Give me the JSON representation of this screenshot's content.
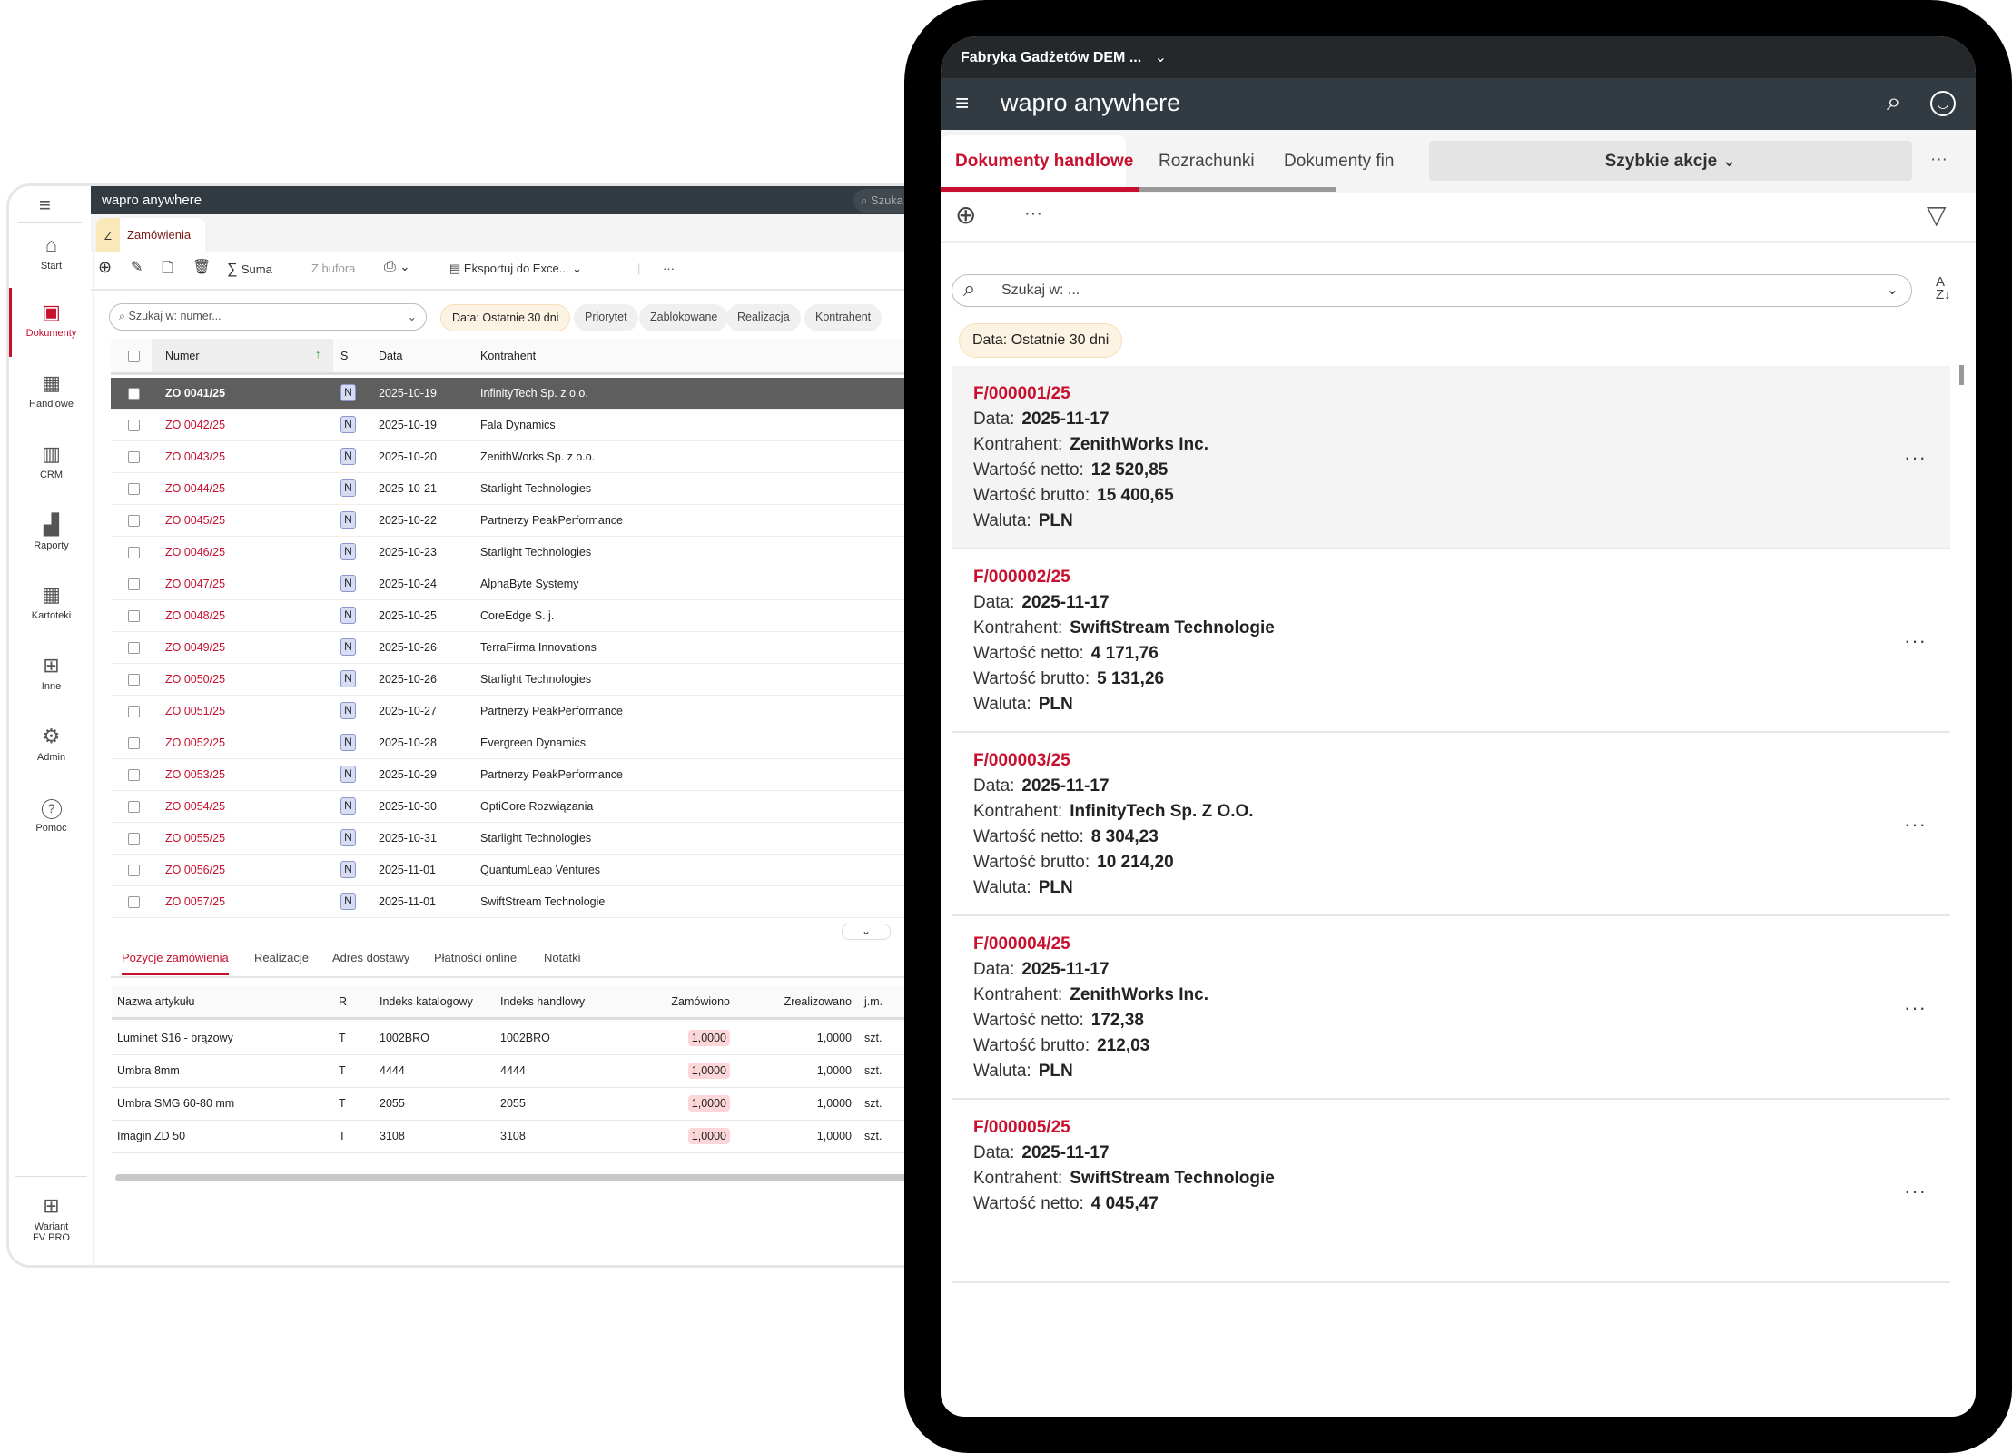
{
  "desktop": {
    "brand": "wapro anywhere",
    "search_placeholder": "Szuka",
    "sidebar": [
      {
        "label": "Start",
        "icon": "home-icon"
      },
      {
        "label": "Dokumenty",
        "icon": "document-icon",
        "active": true
      },
      {
        "label": "Handlowe",
        "icon": "handlowe-icon"
      },
      {
        "label": "CRM",
        "icon": "crm-icon"
      },
      {
        "label": "Raporty",
        "icon": "chart-icon"
      },
      {
        "label": "Kartoteki",
        "icon": "table-icon"
      },
      {
        "label": "Inne",
        "icon": "grid-icon"
      },
      {
        "label": "Admin",
        "icon": "gear-icon"
      },
      {
        "label": "Pomoc",
        "icon": "help-icon"
      }
    ],
    "variant_label_1": "Wariant",
    "variant_label_2": "FV PRO",
    "tab": {
      "badge": "Z",
      "label": "Zamówienia"
    },
    "toolbar": {
      "suma": "Suma",
      "z_bufora": "Z bufora",
      "export": "Eksportuj do Exce..."
    },
    "filter": {
      "search_placeholder": "Szukaj w: numer...",
      "chips": [
        "Data: Ostatnie 30 dni",
        "Priorytet",
        "Zablokowane",
        "Realizacja",
        "Kontrahent"
      ]
    },
    "grid": {
      "headers": {
        "numer": "Numer",
        "s": "S",
        "data": "Data",
        "kontrahent": "Kontrahent"
      },
      "rows": [
        [
          "ZO 0041/25",
          "N",
          "2025-10-19",
          "InfinityTech Sp. z o.o."
        ],
        [
          "ZO 0042/25",
          "N",
          "2025-10-19",
          "Fala Dynamics"
        ],
        [
          "ZO 0043/25",
          "N",
          "2025-10-20",
          "ZenithWorks Sp. z o.o."
        ],
        [
          "ZO 0044/25",
          "N",
          "2025-10-21",
          "Starlight Technologies"
        ],
        [
          "ZO 0045/25",
          "N",
          "2025-10-22",
          "Partnerzy PeakPerformance"
        ],
        [
          "ZO 0046/25",
          "N",
          "2025-10-23",
          "Starlight Technologies"
        ],
        [
          "ZO 0047/25",
          "N",
          "2025-10-24",
          "AlphaByte Systemy"
        ],
        [
          "ZO 0048/25",
          "N",
          "2025-10-25",
          "CoreEdge S. j."
        ],
        [
          "ZO 0049/25",
          "N",
          "2025-10-26",
          "TerraFirma Innovations"
        ],
        [
          "ZO 0050/25",
          "N",
          "2025-10-26",
          "Starlight Technologies"
        ],
        [
          "ZO 0051/25",
          "N",
          "2025-10-27",
          "Partnerzy PeakPerformance"
        ],
        [
          "ZO 0052/25",
          "N",
          "2025-10-28",
          "Evergreen Dynamics"
        ],
        [
          "ZO 0053/25",
          "N",
          "2025-10-29",
          "Partnerzy PeakPerformance"
        ],
        [
          "ZO 0054/25",
          "N",
          "2025-10-30",
          "OptiCore Rozwiązania"
        ],
        [
          "ZO 0055/25",
          "N",
          "2025-10-31",
          "Starlight Technologies"
        ],
        [
          "ZO 0056/25",
          "N",
          "2025-11-01",
          "QuantumLeap Ventures"
        ],
        [
          "ZO 0057/25",
          "N",
          "2025-11-01",
          "SwiftStream Technologie"
        ]
      ]
    },
    "bottom_tabs": [
      "Pozycje zamówienia",
      "Realizacje",
      "Adres dostawy",
      "Płatności online",
      "Notatki"
    ],
    "detail": {
      "headers": [
        "Nazwa artykułu",
        "R",
        "Indeks katalogowy",
        "Indeks handlowy",
        "Zamówiono",
        "Zrealizowano",
        "j.m."
      ],
      "rows": [
        [
          "Luminet S16 - brązowy",
          "T",
          "1002BRO",
          "1002BRO",
          "1,0000",
          "1,0000",
          "szt."
        ],
        [
          "Umbra 8mm",
          "T",
          "4444",
          "4444",
          "1,0000",
          "1,0000",
          "szt."
        ],
        [
          "Umbra SMG 60-80 mm",
          "T",
          "2055",
          "2055",
          "1,0000",
          "1,0000",
          "szt."
        ],
        [
          "Imagin ZD 50",
          "T",
          "3108",
          "3108",
          "1,0000",
          "1,0000",
          "szt."
        ]
      ]
    }
  },
  "tablet": {
    "company": "Fabryka Gadżetów DEM ...",
    "brand": "wapro anywhere",
    "tabs": [
      "Dokumenty handlowe",
      "Rozrachunki",
      "Dokumenty fin"
    ],
    "quick_actions": "Szybkie akcje",
    "search_placeholder": "Szukaj w: ...",
    "chip": "Data: Ostatnie 30 dni",
    "labels": {
      "data": "Data:",
      "kontrahent": "Kontrahent:",
      "netto": "Wartość netto:",
      "brutto": "Wartość brutto:",
      "waluta": "Waluta:"
    },
    "cards": [
      {
        "numer": "F/000001/25",
        "data": "2025-11-17",
        "kontrahent": "ZenithWorks Inc.",
        "netto": "12 520,85",
        "brutto": "15 400,65",
        "waluta": "PLN"
      },
      {
        "numer": "F/000002/25",
        "data": "2025-11-17",
        "kontrahent": "SwiftStream Technologie",
        "netto": "4 171,76",
        "brutto": "5 131,26",
        "waluta": "PLN"
      },
      {
        "numer": "F/000003/25",
        "data": "2025-11-17",
        "kontrahent": "InfinityTech Sp. Z O.O.",
        "netto": "8 304,23",
        "brutto": "10 214,20",
        "waluta": "PLN"
      },
      {
        "numer": "F/000004/25",
        "data": "2025-11-17",
        "kontrahent": "ZenithWorks Inc.",
        "netto": "172,38",
        "brutto": "212,03",
        "waluta": "PLN"
      },
      {
        "numer": "F/000005/25",
        "data": "2025-11-17",
        "kontrahent": "SwiftStream Technologie",
        "netto": "4 045,47"
      }
    ]
  }
}
